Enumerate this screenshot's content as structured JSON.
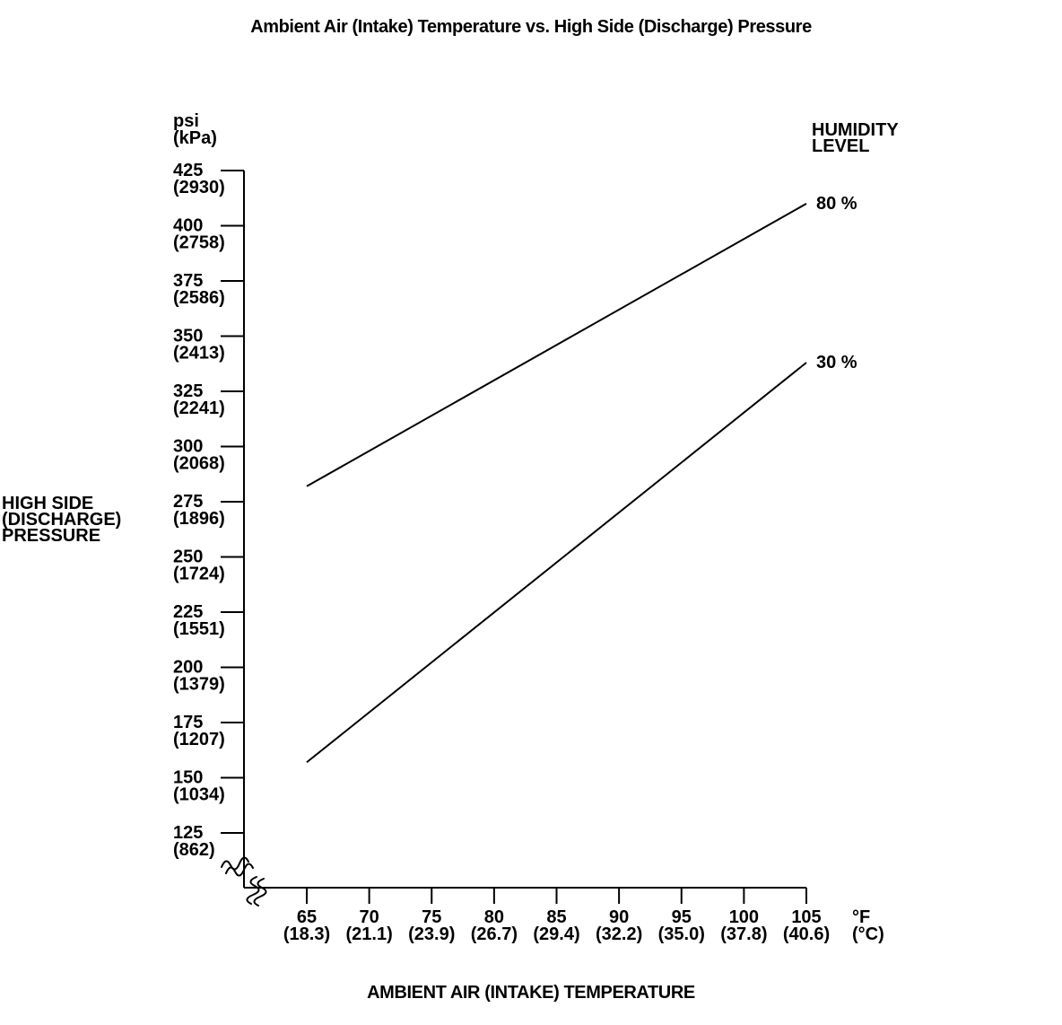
{
  "title": "Ambient Air (Intake) Temperature vs. High Side (Discharge) Pressure",
  "colors": {
    "background": "#ffffff",
    "ink": "#000000"
  },
  "chart_data": {
    "type": "line",
    "title": "Ambient Air (Intake) Temperature vs. High Side (Discharge) Pressure",
    "xlabel": "AMBIENT AIR (INTAKE) TEMPERATURE",
    "ylabel": "HIGH SIDE (DISCHARGE) PRESSURE",
    "ylabel_lines": [
      "HIGH SIDE",
      "(DISCHARGE)",
      "PRESSURE"
    ],
    "y_unit_lines": [
      "psi",
      "(kPa)"
    ],
    "x_unit_lines": [
      "°F",
      "(°C)"
    ],
    "legend_title_lines": [
      "HUMIDITY",
      "LEVEL"
    ],
    "legend_position": "top-right",
    "grid": false,
    "axis_break_marks": true,
    "x_range": [
      65,
      105
    ],
    "y_range": [
      125,
      425
    ],
    "x_ticks": [
      {
        "value": 65,
        "label_f": "65",
        "label_c": "(18.3)"
      },
      {
        "value": 70,
        "label_f": "70",
        "label_c": "(21.1)"
      },
      {
        "value": 75,
        "label_f": "75",
        "label_c": "(23.9)"
      },
      {
        "value": 80,
        "label_f": "80",
        "label_c": "(26.7)"
      },
      {
        "value": 85,
        "label_f": "85",
        "label_c": "(29.4)"
      },
      {
        "value": 90,
        "label_f": "90",
        "label_c": "(32.2)"
      },
      {
        "value": 95,
        "label_f": "95",
        "label_c": "(35.0)"
      },
      {
        "value": 100,
        "label_f": "100",
        "label_c": "(37.8)"
      },
      {
        "value": 105,
        "label_f": "105",
        "label_c": "(40.6)"
      }
    ],
    "y_ticks": [
      {
        "value": 425,
        "label_psi": "425",
        "label_kpa": "(2930)"
      },
      {
        "value": 400,
        "label_psi": "400",
        "label_kpa": "(2758)"
      },
      {
        "value": 375,
        "label_psi": "375",
        "label_kpa": "(2586)"
      },
      {
        "value": 350,
        "label_psi": "350",
        "label_kpa": "(2413)"
      },
      {
        "value": 325,
        "label_psi": "325",
        "label_kpa": "(2241)"
      },
      {
        "value": 300,
        "label_psi": "300",
        "label_kpa": "(2068)"
      },
      {
        "value": 275,
        "label_psi": "275",
        "label_kpa": "(1896)"
      },
      {
        "value": 250,
        "label_psi": "250",
        "label_kpa": "(1724)"
      },
      {
        "value": 225,
        "label_psi": "225",
        "label_kpa": "(1551)"
      },
      {
        "value": 200,
        "label_psi": "200",
        "label_kpa": "(1379)"
      },
      {
        "value": 175,
        "label_psi": "175",
        "label_kpa": "(1207)"
      },
      {
        "value": 150,
        "label_psi": "150",
        "label_kpa": "(1034)"
      },
      {
        "value": 125,
        "label_psi": "125",
        "label_kpa": "(862)"
      }
    ],
    "series": [
      {
        "name": "80 %",
        "humidity_percent": 80,
        "points": [
          {
            "x": 65,
            "y": 282
          },
          {
            "x": 105,
            "y": 410
          }
        ]
      },
      {
        "name": "30 %",
        "humidity_percent": 30,
        "points": [
          {
            "x": 65,
            "y": 157
          },
          {
            "x": 105,
            "y": 338
          }
        ]
      }
    ]
  }
}
